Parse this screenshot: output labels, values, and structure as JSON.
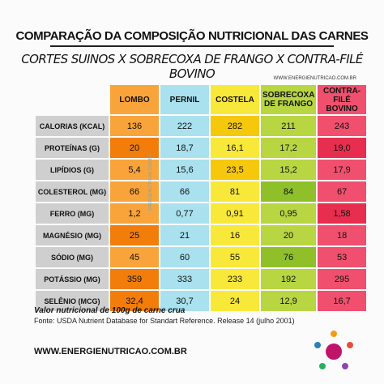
{
  "header": {
    "title": "COMPARAÇÃO DA COMPOSIÇÃO NUTRICIONAL DAS CARNES",
    "subtitle": "CORTES SUINOS X SOBRECOXA DE FRANGO X CONTRA-FILÉ BOVINO",
    "website": "WWW.ENERGIENUTRICAO.COM.BR"
  },
  "table": {
    "columns": [
      "LOMBO",
      "PERNIL",
      "COSTELA",
      "SOBRECOXA DE FRANGO",
      "CONTRA-FILÉ BOVINO"
    ],
    "rows": [
      {
        "label": "CALORIAS (KCAL)",
        "values": [
          "136",
          "222",
          "282",
          "211",
          "243"
        ]
      },
      {
        "label": "PROTEÍNAS (G)",
        "values": [
          "20",
          "18,7",
          "16,1",
          "17,2",
          "19,0"
        ]
      },
      {
        "label": "LIPÍDIOS (G)",
        "values": [
          "5,4",
          "15,6",
          "23,5",
          "15,2",
          "17,9"
        ]
      },
      {
        "label": "COLESTEROL (MG)",
        "values": [
          "66",
          "66",
          "81",
          "84",
          "67"
        ]
      },
      {
        "label": "FERRO (MG)",
        "values": [
          "1,2",
          "0,77",
          "0,91",
          "0,95",
          "1,58"
        ]
      },
      {
        "label": "MAGNÉSIO (MG)",
        "values": [
          "25",
          "21",
          "16",
          "20",
          "18"
        ]
      },
      {
        "label": "SÓDIO (MG)",
        "values": [
          "45",
          "60",
          "55",
          "76",
          "53"
        ]
      },
      {
        "label": "POTÁSSIO (MG)",
        "values": [
          "359",
          "333",
          "233",
          "192",
          "295"
        ]
      },
      {
        "label": "SELÊNIO (MCG)",
        "values": [
          "32,4",
          "30,7",
          "24",
          "12,9",
          "16,7"
        ]
      }
    ],
    "watermark": "ENERGIENUTRICAO.COM.BR"
  },
  "notes": {
    "caption": "Valor nutricional de 100g de carne crua",
    "source": "Fonte: USDA Nutrient Database for Standart Reference. Release 14 (julho 2001)"
  },
  "footer": {
    "website": "WWW.ENERGIENUTRICAO.COM.BR"
  }
}
